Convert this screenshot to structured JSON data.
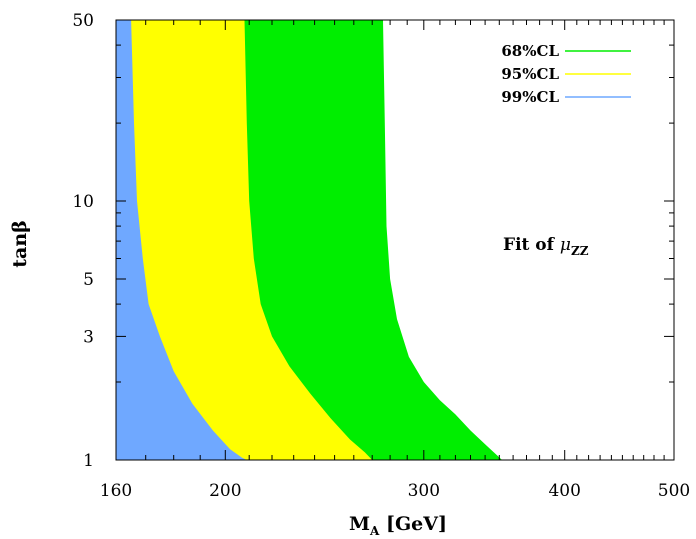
{
  "chart_data": {
    "type": "area",
    "x_scale": "log",
    "y_scale": "log",
    "xlim": [
      160,
      500
    ],
    "ylim": [
      1,
      50
    ],
    "xlabel": "M_A [GeV]",
    "xlabel_main": "M",
    "xlabel_sub": "A",
    "xlabel_unit": " [GeV]",
    "ylabel": "tanβ",
    "x_ticks": [
      160,
      200,
      300,
      400,
      500
    ],
    "x_tick_labels": [
      "160",
      "200",
      "300",
      "400",
      "500"
    ],
    "y_ticks": [
      1,
      3,
      5,
      10,
      50
    ],
    "y_tick_labels": [
      "1",
      "3",
      "5",
      "10",
      "50"
    ],
    "annotation": {
      "prefix": "Fit of ",
      "symbol": "μ",
      "sub": "ZZ"
    },
    "legend_position": "top-right",
    "series": [
      {
        "name": "68%CL",
        "color": "#00ee00",
        "boundary": [
          [
            276,
            50
          ],
          [
            277,
            20
          ],
          [
            278,
            8
          ],
          [
            280,
            5
          ],
          [
            284,
            3.5
          ],
          [
            291,
            2.5
          ],
          [
            300,
            2.0
          ],
          [
            310,
            1.7
          ],
          [
            320,
            1.5
          ],
          [
            330,
            1.3
          ],
          [
            340,
            1.15
          ],
          [
            352,
            1.0
          ]
        ]
      },
      {
        "name": "95%CL",
        "color": "#ffff00",
        "boundary": [
          [
            208,
            50
          ],
          [
            209,
            20
          ],
          [
            210,
            10
          ],
          [
            212,
            6
          ],
          [
            215,
            4
          ],
          [
            220,
            3
          ],
          [
            228,
            2.3
          ],
          [
            238,
            1.8
          ],
          [
            248,
            1.45
          ],
          [
            258,
            1.2
          ],
          [
            266,
            1.07
          ],
          [
            270,
            1.0
          ]
        ]
      },
      {
        "name": "99%CL",
        "color": "#6fa8ff",
        "boundary": [
          [
            165,
            50
          ],
          [
            166,
            20
          ],
          [
            167,
            10
          ],
          [
            169,
            6
          ],
          [
            171,
            4
          ],
          [
            175,
            3
          ],
          [
            180,
            2.2
          ],
          [
            187,
            1.65
          ],
          [
            195,
            1.3
          ],
          [
            202,
            1.1
          ],
          [
            207,
            1.02
          ],
          [
            209,
            1.0
          ]
        ]
      }
    ]
  }
}
